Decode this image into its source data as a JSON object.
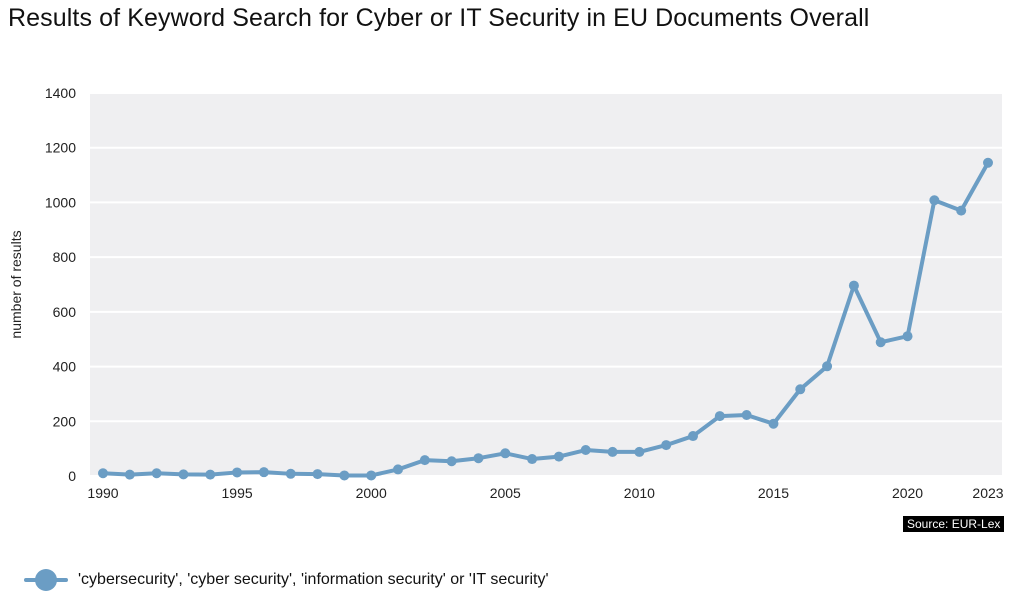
{
  "chart_data": {
    "type": "line",
    "title": "Results of Keyword Search for Cyber or IT Security in EU Documents Overall",
    "xlabel": "",
    "ylabel": "number of results",
    "ylim": [
      0,
      1400
    ],
    "xlim": [
      1990,
      2023
    ],
    "yticks": [
      0,
      200,
      400,
      600,
      800,
      1000,
      1200,
      1400
    ],
    "xticks": [
      1990,
      1995,
      2000,
      2005,
      2010,
      2015,
      2020,
      2023
    ],
    "grid": true,
    "legend_position": "bottom-left",
    "x": [
      1990,
      1991,
      1992,
      1993,
      1994,
      1995,
      1996,
      1997,
      1998,
      1999,
      2000,
      2001,
      2002,
      2003,
      2004,
      2005,
      2006,
      2007,
      2008,
      2009,
      2010,
      2011,
      2012,
      2013,
      2014,
      2015,
      2016,
      2017,
      2018,
      2019,
      2020,
      2021,
      2022,
      2023
    ],
    "series": [
      {
        "name": "'cybersecurity', 'cyber security', 'information security' or 'IT security'",
        "color": "#6b9dc4",
        "values": [
          10,
          5,
          10,
          6,
          5,
          13,
          14,
          8,
          7,
          2,
          2,
          24,
          58,
          54,
          65,
          83,
          62,
          71,
          95,
          88,
          88,
          113,
          146,
          219,
          223,
          191,
          317,
          401,
          696,
          489,
          511,
          1008,
          970,
          1145
        ]
      }
    ],
    "source": "Source: EUR-Lex"
  }
}
